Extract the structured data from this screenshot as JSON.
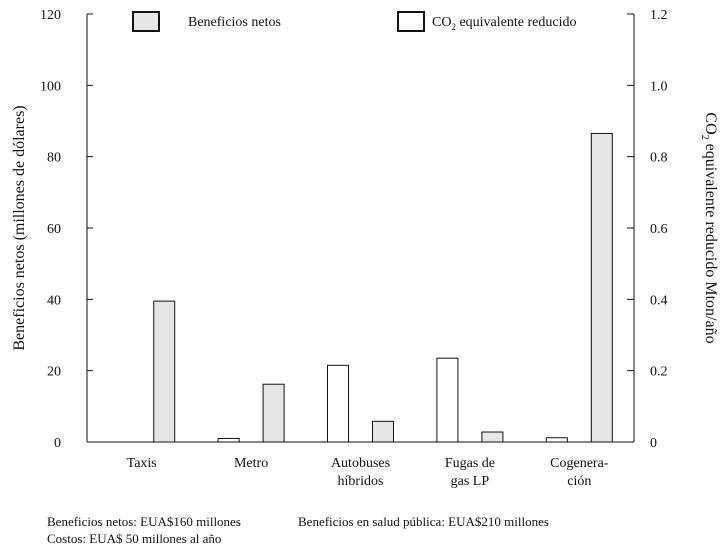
{
  "chart_data": {
    "type": "bar",
    "categories": [
      [
        "Taxis"
      ],
      [
        "Metro"
      ],
      [
        "Autobuses",
        "híbridos"
      ],
      [
        "Fugas de",
        "gas LP"
      ],
      [
        "Cogenera-",
        "ción"
      ]
    ],
    "series": [
      {
        "name": "CO₂ equivalente reducido",
        "axis": "right",
        "fill": "#ffffff",
        "values": [
          0.0,
          0.01,
          0.215,
          0.235,
          0.012
        ]
      },
      {
        "name": "Beneficios netos",
        "axis": "left",
        "fill": "#e6e6e6",
        "values": [
          39.5,
          16.2,
          5.8,
          2.8,
          86.5
        ]
      }
    ],
    "ylabel_left": "Beneficios netos (millones de dólares)",
    "ylabel_right": "CO₂ equivalente reducido Mton/año",
    "ylim_left": [
      0,
      120
    ],
    "yticks_left": [
      "0",
      "20",
      "40",
      "60",
      "80",
      "100",
      "120"
    ],
    "ylim_right": [
      0,
      1.2
    ],
    "yticks_right": [
      "0",
      "0.2",
      "0.4",
      "0.6",
      "0.8",
      "1.0",
      "1.2"
    ],
    "legend": [
      {
        "label": "Beneficios netos",
        "fill": "#e6e6e6"
      },
      {
        "label": "CO₂ equivalente reducido",
        "fill": "#ffffff"
      }
    ],
    "legend_position": "top",
    "grid": false
  },
  "notes": [
    "Beneficios netos: EUA$160 millones",
    "Beneficios en salud pública: EUA$210 millones",
    "Costos: EUA$ 50 millones al año"
  ]
}
